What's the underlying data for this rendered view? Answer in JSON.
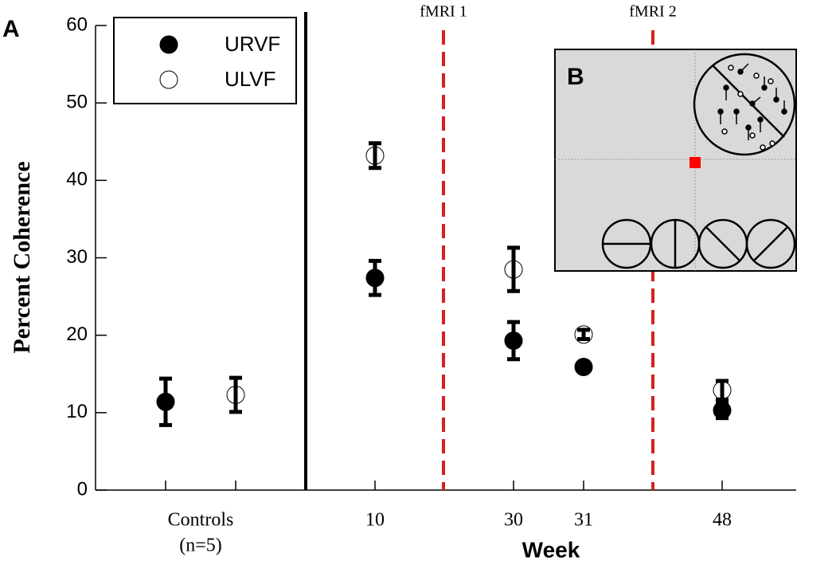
{
  "chart_data": {
    "type": "errorbar",
    "panel_labels": [
      "A",
      "B"
    ],
    "y_label": "Percent Coherence",
    "x_label": "Week",
    "categories": [
      "Controls",
      "10",
      "30",
      "31",
      "48"
    ],
    "category_note": "(n=5)",
    "ylim": [
      0,
      60
    ],
    "yticks": [
      0,
      10,
      20,
      30,
      40,
      50,
      60
    ],
    "reference_lines": [
      {
        "label": "fMRI 1",
        "color": "#d62020"
      },
      {
        "label": "fMRI 2",
        "color": "#d62020"
      }
    ],
    "series": [
      {
        "name": "URVF",
        "filled": true,
        "values": [
          11.4,
          27.4,
          19.3,
          15.9,
          10.3
        ],
        "errors": [
          3.0,
          2.2,
          2.4,
          null,
          1.0
        ]
      },
      {
        "name": "ULVF",
        "filled": false,
        "values": [
          12.3,
          43.2,
          28.5,
          20.1,
          12.9
        ],
        "errors": [
          2.2,
          1.6,
          2.8,
          0.6,
          1.2
        ]
      }
    ]
  }
}
